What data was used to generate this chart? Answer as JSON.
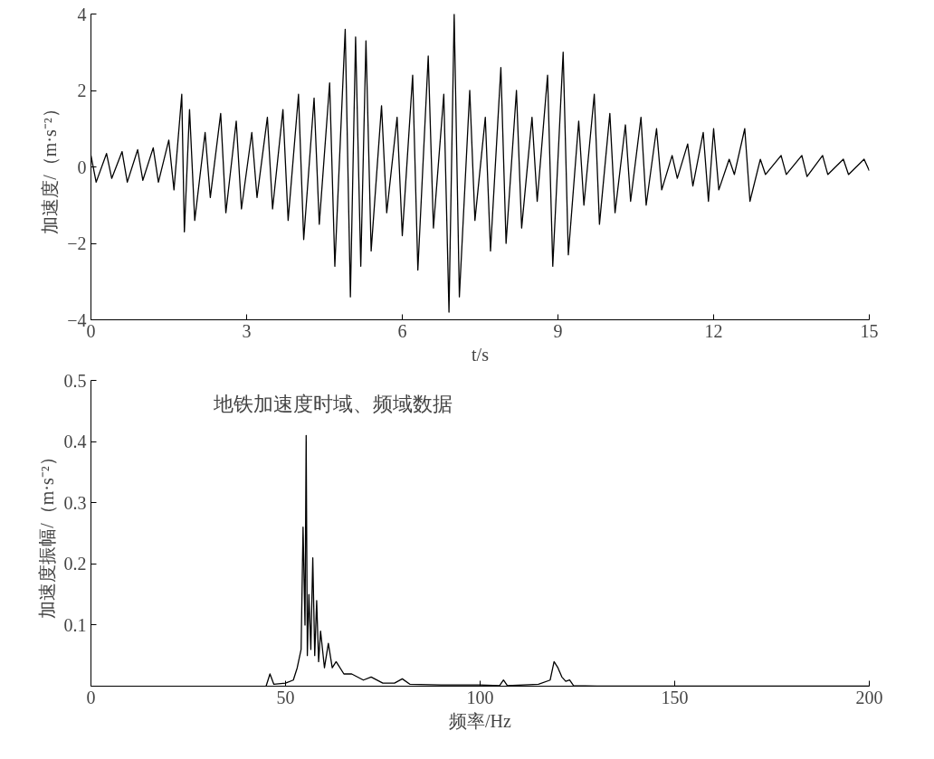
{
  "chart_data": [
    {
      "type": "line",
      "xlabel": "t/s",
      "ylabel": "加速度/（m·s⁻²）",
      "xlim": [
        0,
        15
      ],
      "xticks": [
        0,
        3,
        6,
        9,
        12,
        15
      ],
      "ylim": [
        -4,
        4
      ],
      "yticks": [
        -4,
        -2,
        0,
        2,
        4
      ],
      "grid": false,
      "series": [
        {
          "color": "#000000",
          "x": [
            0,
            0.1,
            0.3,
            0.4,
            0.6,
            0.7,
            0.9,
            1.0,
            1.2,
            1.3,
            1.5,
            1.6,
            1.75,
            1.8,
            1.9,
            2.0,
            2.2,
            2.3,
            2.5,
            2.6,
            2.8,
            2.9,
            3.1,
            3.2,
            3.4,
            3.5,
            3.7,
            3.8,
            4.0,
            4.1,
            4.3,
            4.4,
            4.6,
            4.7,
            4.9,
            5.0,
            5.1,
            5.2,
            5.3,
            5.4,
            5.6,
            5.7,
            5.9,
            6.0,
            6.2,
            6.3,
            6.5,
            6.6,
            6.8,
            6.9,
            7.0,
            7.1,
            7.3,
            7.4,
            7.6,
            7.7,
            7.9,
            8.0,
            8.2,
            8.3,
            8.5,
            8.6,
            8.8,
            8.9,
            9.1,
            9.2,
            9.4,
            9.5,
            9.7,
            9.8,
            10.0,
            10.1,
            10.3,
            10.4,
            10.6,
            10.7,
            10.9,
            11.0,
            11.2,
            11.3,
            11.5,
            11.6,
            11.8,
            11.9,
            12.0,
            12.1,
            12.3,
            12.4,
            12.6,
            12.7,
            12.9,
            13.0,
            13.3,
            13.4,
            13.7,
            13.8,
            14.1,
            14.2,
            14.5,
            14.6,
            14.9,
            15.0
          ],
          "values": [
            0.3,
            -0.4,
            0.35,
            -0.3,
            0.4,
            -0.4,
            0.45,
            -0.35,
            0.5,
            -0.4,
            0.7,
            -0.6,
            1.9,
            -1.7,
            1.5,
            -1.4,
            0.9,
            -0.8,
            1.4,
            -1.2,
            1.2,
            -1.1,
            0.9,
            -0.8,
            1.3,
            -1.1,
            1.5,
            -1.4,
            1.9,
            -1.9,
            1.8,
            -1.5,
            2.2,
            -2.6,
            3.6,
            -3.4,
            3.4,
            -2.6,
            3.3,
            -2.2,
            1.6,
            -1.2,
            1.3,
            -1.8,
            2.4,
            -2.7,
            2.9,
            -1.6,
            1.9,
            -3.8,
            4.0,
            -3.4,
            2.0,
            -1.4,
            1.3,
            -2.2,
            2.6,
            -2.0,
            2.0,
            -1.6,
            1.3,
            -0.9,
            2.4,
            -2.6,
            3.0,
            -2.3,
            1.2,
            -1.0,
            1.9,
            -1.5,
            1.4,
            -1.2,
            1.1,
            -0.9,
            1.3,
            -1.0,
            1.0,
            -0.6,
            0.3,
            -0.3,
            0.6,
            -0.5,
            0.9,
            -0.9,
            1.0,
            -0.6,
            0.2,
            -0.2,
            1.0,
            -0.9,
            0.2,
            -0.2,
            0.3,
            -0.2,
            0.3,
            -0.25,
            0.3,
            -0.2,
            0.2,
            -0.2,
            0.2,
            -0.1
          ]
        }
      ]
    },
    {
      "type": "line",
      "xlabel": "频率/Hz",
      "ylabel": "加速度振幅/（m·s⁻²）",
      "annotations": [
        "地铁加速度时域、频域数据"
      ],
      "xlim": [
        0,
        200
      ],
      "xticks": [
        0,
        50,
        100,
        150,
        200
      ],
      "ylim": [
        0,
        0.5
      ],
      "yticks": [
        0.1,
        0.2,
        0.3,
        0.4,
        0.5
      ],
      "grid": false,
      "series": [
        {
          "color": "#000000",
          "x": [
            45,
            46,
            47,
            50,
            52,
            53,
            54,
            54.5,
            55,
            55.3,
            55.6,
            56,
            56.5,
            57,
            57.5,
            58,
            58.5,
            59,
            60,
            61,
            62,
            63,
            65,
            67,
            70,
            72,
            75,
            78,
            80,
            82,
            90,
            100,
            105,
            106,
            107,
            115,
            118,
            119,
            120,
            121,
            122,
            123,
            124,
            130,
            200
          ],
          "values": [
            0,
            0.02,
            0.003,
            0.005,
            0.01,
            0.03,
            0.06,
            0.26,
            0.1,
            0.41,
            0.05,
            0.15,
            0.06,
            0.21,
            0.05,
            0.14,
            0.04,
            0.09,
            0.03,
            0.07,
            0.03,
            0.04,
            0.02,
            0.02,
            0.01,
            0.015,
            0.005,
            0.005,
            0.012,
            0.003,
            0.002,
            0.002,
            0.001,
            0.01,
            0.001,
            0.003,
            0.01,
            0.04,
            0.03,
            0.015,
            0.008,
            0.01,
            0.001,
            0,
            0
          ]
        }
      ]
    }
  ]
}
